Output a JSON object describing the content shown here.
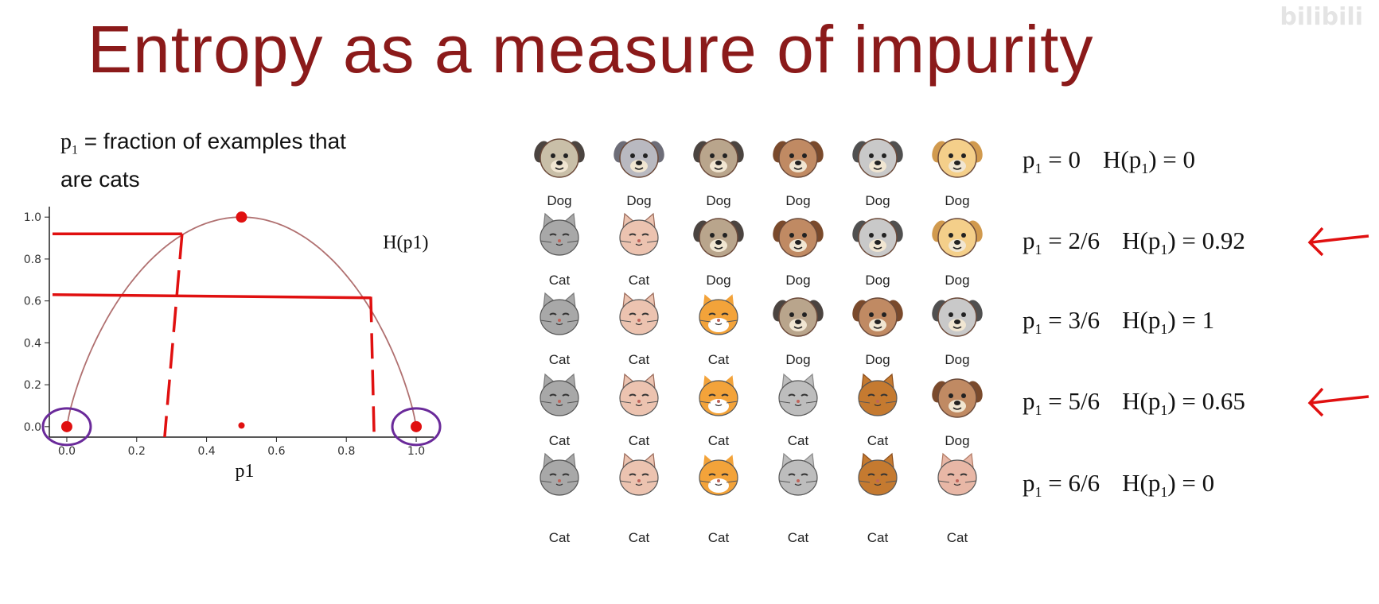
{
  "watermark": "bilibili",
  "title": "Entropy as a measure of impurity",
  "description": {
    "var": "p",
    "sub": "1",
    "rest1": " = fraction of examples that",
    "rest2": "are cats"
  },
  "chart_data": {
    "type": "line",
    "title": "",
    "xlabel": "p1",
    "curve_label": "H(p1)",
    "xlim": [
      -0.05,
      1.05
    ],
    "ylim": [
      -0.05,
      1.05
    ],
    "x_ticks": [
      "0.0",
      "0.2",
      "0.4",
      "0.6",
      "0.8",
      "1.0"
    ],
    "y_ticks": [
      "0.0",
      "0.2",
      "0.4",
      "0.6",
      "0.8",
      "1.0"
    ],
    "series": [
      {
        "x": [
          0.0,
          0.05,
          0.1,
          0.2,
          0.333,
          0.5,
          0.667,
          0.833,
          0.9,
          0.95,
          1.0
        ],
        "y": [
          0.0,
          0.29,
          0.47,
          0.72,
          0.92,
          1.0,
          0.92,
          0.65,
          0.47,
          0.29,
          0.0
        ]
      }
    ],
    "annotations": {
      "highlighted_points": [
        [
          0.0,
          0.0
        ],
        [
          0.5,
          1.0
        ],
        [
          1.0,
          0.0
        ],
        [
          0.5,
          -0.04
        ]
      ],
      "horizontal_marks": [
        0.92,
        0.63
      ],
      "vertical_marks": [
        0.28,
        0.88
      ],
      "circled_points": [
        [
          0.0,
          0.0
        ],
        [
          1.0,
          0.0
        ]
      ]
    }
  },
  "rows": [
    {
      "animals": [
        {
          "type": "dog",
          "style": "pug",
          "label": "Dog"
        },
        {
          "type": "dog",
          "style": "wolf",
          "label": "Dog"
        },
        {
          "type": "dog",
          "style": "pug2",
          "label": "Dog"
        },
        {
          "type": "dog",
          "style": "brown",
          "label": "Dog"
        },
        {
          "type": "dog",
          "style": "grey",
          "label": "Dog"
        },
        {
          "type": "dog",
          "style": "golden",
          "label": "Dog"
        }
      ],
      "p": "0",
      "h": "0"
    },
    {
      "animals": [
        {
          "type": "cat",
          "style": "grey",
          "label": "Cat"
        },
        {
          "type": "cat",
          "style": "pink",
          "label": "Cat"
        },
        {
          "type": "dog",
          "style": "pug2",
          "label": "Dog"
        },
        {
          "type": "dog",
          "style": "brown",
          "label": "Dog"
        },
        {
          "type": "dog",
          "style": "grey",
          "label": "Dog"
        },
        {
          "type": "dog",
          "style": "golden",
          "label": "Dog"
        }
      ],
      "p": "2/6",
      "h": "0.92"
    },
    {
      "animals": [
        {
          "type": "cat",
          "style": "grey",
          "label": "Cat"
        },
        {
          "type": "cat",
          "style": "pink",
          "label": "Cat"
        },
        {
          "type": "cat",
          "style": "orange",
          "label": "Cat"
        },
        {
          "type": "dog",
          "style": "pug2",
          "label": "Dog"
        },
        {
          "type": "dog",
          "style": "brown",
          "label": "Dog"
        },
        {
          "type": "dog",
          "style": "grey",
          "label": "Dog"
        }
      ],
      "p": "3/6",
      "h": "1"
    },
    {
      "animals": [
        {
          "type": "cat",
          "style": "grey",
          "label": "Cat"
        },
        {
          "type": "cat",
          "style": "pink",
          "label": "Cat"
        },
        {
          "type": "cat",
          "style": "orange",
          "label": "Cat"
        },
        {
          "type": "cat",
          "style": "silver",
          "label": "Cat"
        },
        {
          "type": "cat",
          "style": "brown",
          "label": "Cat"
        },
        {
          "type": "dog",
          "style": "brown",
          "label": "Dog"
        }
      ],
      "p": "5/6",
      "h": "0.65"
    },
    {
      "animals": [
        {
          "type": "cat",
          "style": "grey",
          "label": "Cat"
        },
        {
          "type": "cat",
          "style": "pink",
          "label": "Cat"
        },
        {
          "type": "cat",
          "style": "orange",
          "label": "Cat"
        },
        {
          "type": "cat",
          "style": "silver",
          "label": "Cat"
        },
        {
          "type": "cat",
          "style": "brown",
          "label": "Cat"
        },
        {
          "type": "cat",
          "style": "tabby",
          "label": "Cat"
        }
      ],
      "p": "6/6",
      "h": "0"
    }
  ],
  "equation_prefix": "p",
  "equation_sub": "1",
  "arrows_on_rows": [
    1,
    3
  ],
  "colors": {
    "title": "#8b1a1a",
    "curve": "#b07070",
    "annotation_red": "#e01010",
    "circle_purple": "#6a2a9a"
  }
}
